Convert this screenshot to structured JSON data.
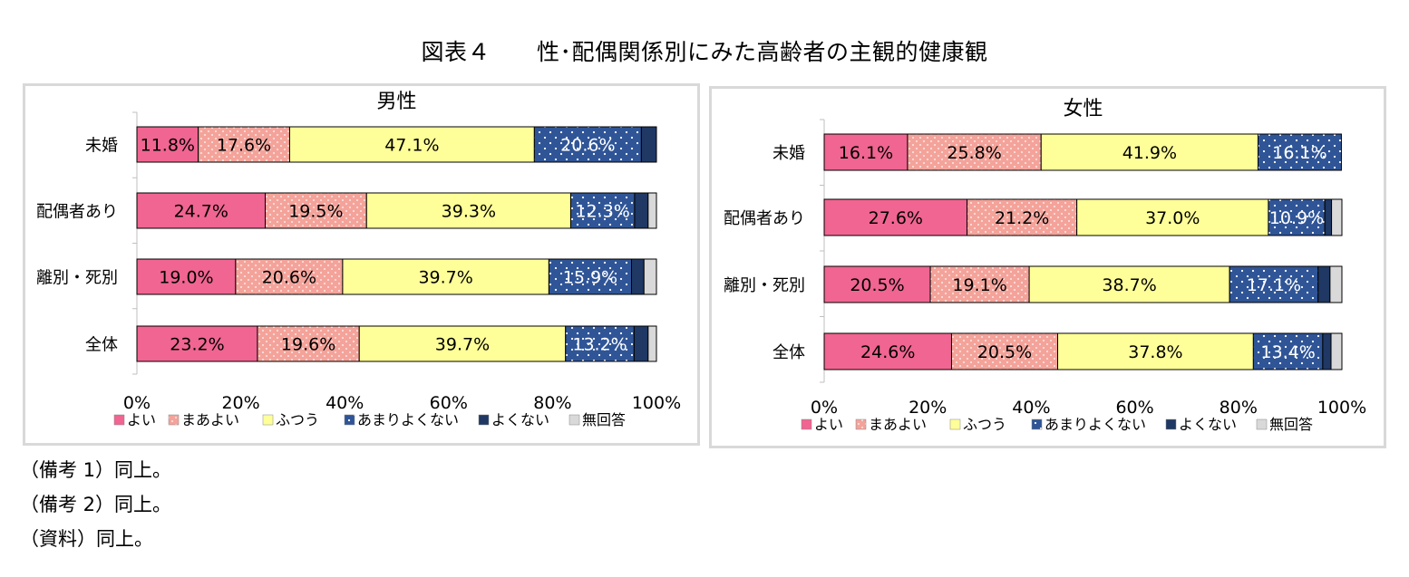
{
  "title": "図表４　　性･配偶関係別にみた高齢者の主観的健康観",
  "notes": [
    "（備考 1）同上。",
    "（備考 2）同上。",
    "（資料）同上。"
  ],
  "colors": {
    "よい": "#f06591",
    "まあよい": "#f4a39a",
    "ふつう": "#ffff99",
    "あまりよくない": "#2f5597",
    "よくない": "#1f3864",
    "無回答": "#d9d9d9"
  },
  "chart_data": [
    {
      "type": "bar",
      "orientation": "horizontal",
      "stacked": true,
      "title": "男性",
      "categories": [
        "未婚",
        "配偶者あり",
        "離別・死別",
        "全体"
      ],
      "xlim": [
        0,
        100
      ],
      "x_ticks": [
        "0%",
        "20%",
        "40%",
        "60%",
        "80%",
        "100%"
      ],
      "legend_position": "bottom",
      "series": [
        {
          "name": "よい",
          "values": [
            11.8,
            24.7,
            19.0,
            23.2
          ],
          "labels": [
            "11.8%",
            "24.7%",
            "19.0%",
            "23.2%"
          ]
        },
        {
          "name": "まあよい",
          "values": [
            17.6,
            19.5,
            20.6,
            19.6
          ],
          "labels": [
            "17.6%",
            "19.5%",
            "20.6%",
            "19.6%"
          ]
        },
        {
          "name": "ふつう",
          "values": [
            47.1,
            39.3,
            39.7,
            39.7
          ],
          "labels": [
            "47.1%",
            "39.3%",
            "39.7%",
            "39.7%"
          ]
        },
        {
          "name": "あまりよくない",
          "values": [
            20.6,
            12.3,
            15.9,
            13.2
          ],
          "labels": [
            "20.6%",
            "12.3%",
            "15.9%",
            "13.2%"
          ]
        },
        {
          "name": "よくない",
          "values": [
            2.9,
            2.6,
            2.4,
            2.7
          ],
          "labels": [
            "",
            "",
            "",
            ""
          ]
        },
        {
          "name": "無回答",
          "values": [
            0.0,
            1.6,
            2.4,
            1.6
          ],
          "labels": [
            "",
            "",
            "",
            ""
          ]
        }
      ]
    },
    {
      "type": "bar",
      "orientation": "horizontal",
      "stacked": true,
      "title": "女性",
      "categories": [
        "未婚",
        "配偶者あり",
        "離別・死別",
        "全体"
      ],
      "xlim": [
        0,
        100
      ],
      "x_ticks": [
        "0%",
        "20%",
        "40%",
        "60%",
        "80%",
        "100%"
      ],
      "legend_position": "bottom",
      "series": [
        {
          "name": "よい",
          "values": [
            16.1,
            27.6,
            20.5,
            24.6
          ],
          "labels": [
            "16.1%",
            "27.6%",
            "20.5%",
            "24.6%"
          ]
        },
        {
          "name": "まあよい",
          "values": [
            25.8,
            21.2,
            19.1,
            20.5
          ],
          "labels": [
            "25.8%",
            "21.2%",
            "19.1%",
            "20.5%"
          ]
        },
        {
          "name": "ふつう",
          "values": [
            41.9,
            37.0,
            38.7,
            37.8
          ],
          "labels": [
            "41.9%",
            "37.0%",
            "38.7%",
            "37.8%"
          ]
        },
        {
          "name": "あまりよくない",
          "values": [
            16.1,
            10.9,
            17.1,
            13.4
          ],
          "labels": [
            "16.1%",
            "10.9%",
            "17.1%",
            "13.4%"
          ]
        },
        {
          "name": "よくない",
          "values": [
            0.0,
            1.3,
            2.3,
            1.6
          ],
          "labels": [
            "",
            "",
            "",
            ""
          ]
        },
        {
          "name": "無回答",
          "values": [
            0.0,
            2.0,
            2.3,
            2.1
          ],
          "labels": [
            "",
            "",
            "",
            ""
          ]
        }
      ]
    }
  ]
}
